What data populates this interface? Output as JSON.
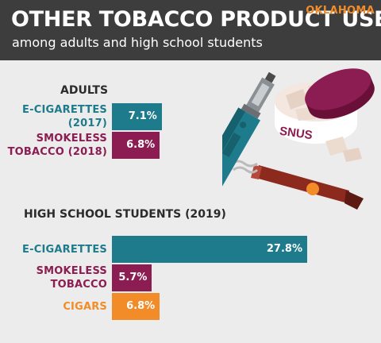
{
  "header": {
    "title": "OTHER TOBACCO PRODUCT USE",
    "subtitle": "among adults and high school students",
    "state": "OKLAHOMA"
  },
  "colors": {
    "teal": "#1e7b8c",
    "maroon": "#8c1d52",
    "orange": "#f28c28",
    "header_bg": "#3d3d3d",
    "background": "#ececec"
  },
  "illustration": {
    "snus_label": "SNUS",
    "icons": [
      "e-cigarette-icon",
      "snus-tin-icon",
      "cigar-icon"
    ]
  },
  "chart_data": [
    {
      "type": "bar",
      "title": "ADULTS",
      "orientation": "horizontal",
      "categories": [
        "E-CIGARETTES (2017)",
        "SMOKELESS TOBACCO (2018)"
      ],
      "category_lines": [
        [
          "E-CIGARETTES",
          "(2017)"
        ],
        [
          "SMOKELESS",
          "TOBACCO (2018)"
        ]
      ],
      "values": [
        7.1,
        6.8
      ],
      "value_labels": [
        "7.1%",
        "6.8%"
      ],
      "colors": [
        "#1e7b8c",
        "#8c1d52"
      ],
      "unit": "%"
    },
    {
      "type": "bar",
      "title": "HIGH SCHOOL STUDENTS (2019)",
      "orientation": "horizontal",
      "categories": [
        "E-CIGARETTES",
        "SMOKELESS TOBACCO",
        "CIGARS"
      ],
      "category_lines": [
        [
          "E-CIGARETTES"
        ],
        [
          "SMOKELESS",
          "TOBACCO"
        ],
        [
          "CIGARS"
        ]
      ],
      "values": [
        27.8,
        5.7,
        6.8
      ],
      "value_labels": [
        "27.8%",
        "5.7%",
        "6.8%"
      ],
      "colors": [
        "#1e7b8c",
        "#8c1d52",
        "#f28c28"
      ],
      "unit": "%"
    }
  ]
}
